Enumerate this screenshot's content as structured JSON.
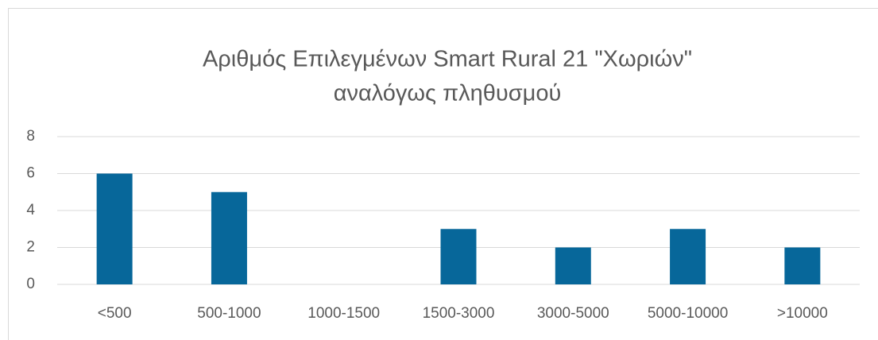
{
  "chart_data": {
    "type": "bar",
    "title": [
      "Αριθμός Επιλεγμένων Smart Rural 21 \"Χωριών\"",
      "αναλόγως πληθυσμού"
    ],
    "categories": [
      "<500",
      "500-1000",
      "1000-1500",
      "1500-3000",
      "3000-5000",
      "5000-10000",
      ">10000"
    ],
    "values": [
      6,
      5,
      0,
      3,
      2,
      3,
      2
    ],
    "color": "#07679a",
    "ylim": [
      0,
      8
    ],
    "yticks": [
      0,
      2,
      4,
      6,
      8
    ],
    "grid": true
  }
}
